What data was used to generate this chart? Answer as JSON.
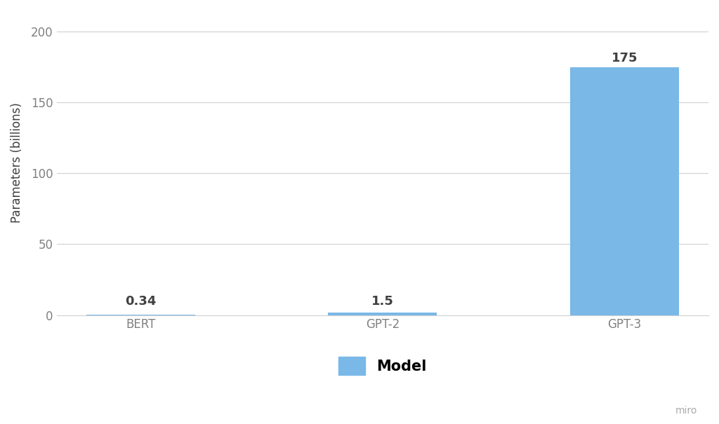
{
  "categories": [
    "BERT",
    "GPT-2",
    "GPT-3"
  ],
  "values": [
    0.34,
    1.5,
    175
  ],
  "bar_color": "#7ab8e8",
  "bar_labels": [
    "0.34",
    "1.5",
    "175"
  ],
  "ylabel": "Parameters (billions)",
  "legend_label": "Model",
  "ylim": [
    0,
    215
  ],
  "yticks": [
    0,
    50,
    100,
    150,
    200
  ],
  "background_color": "#ffffff",
  "plot_bg_color": "#ffffff",
  "grid_color": "#d0d0d0",
  "text_color": "#404040",
  "tick_color": "#808080",
  "bar_label_fontsize": 13,
  "axis_label_fontsize": 12,
  "tick_label_fontsize": 12,
  "legend_fontsize": 15,
  "annotation_color": "#aaaaaa",
  "annotation_text": "miro",
  "annotation_fontsize": 10,
  "bar_width": 0.45
}
